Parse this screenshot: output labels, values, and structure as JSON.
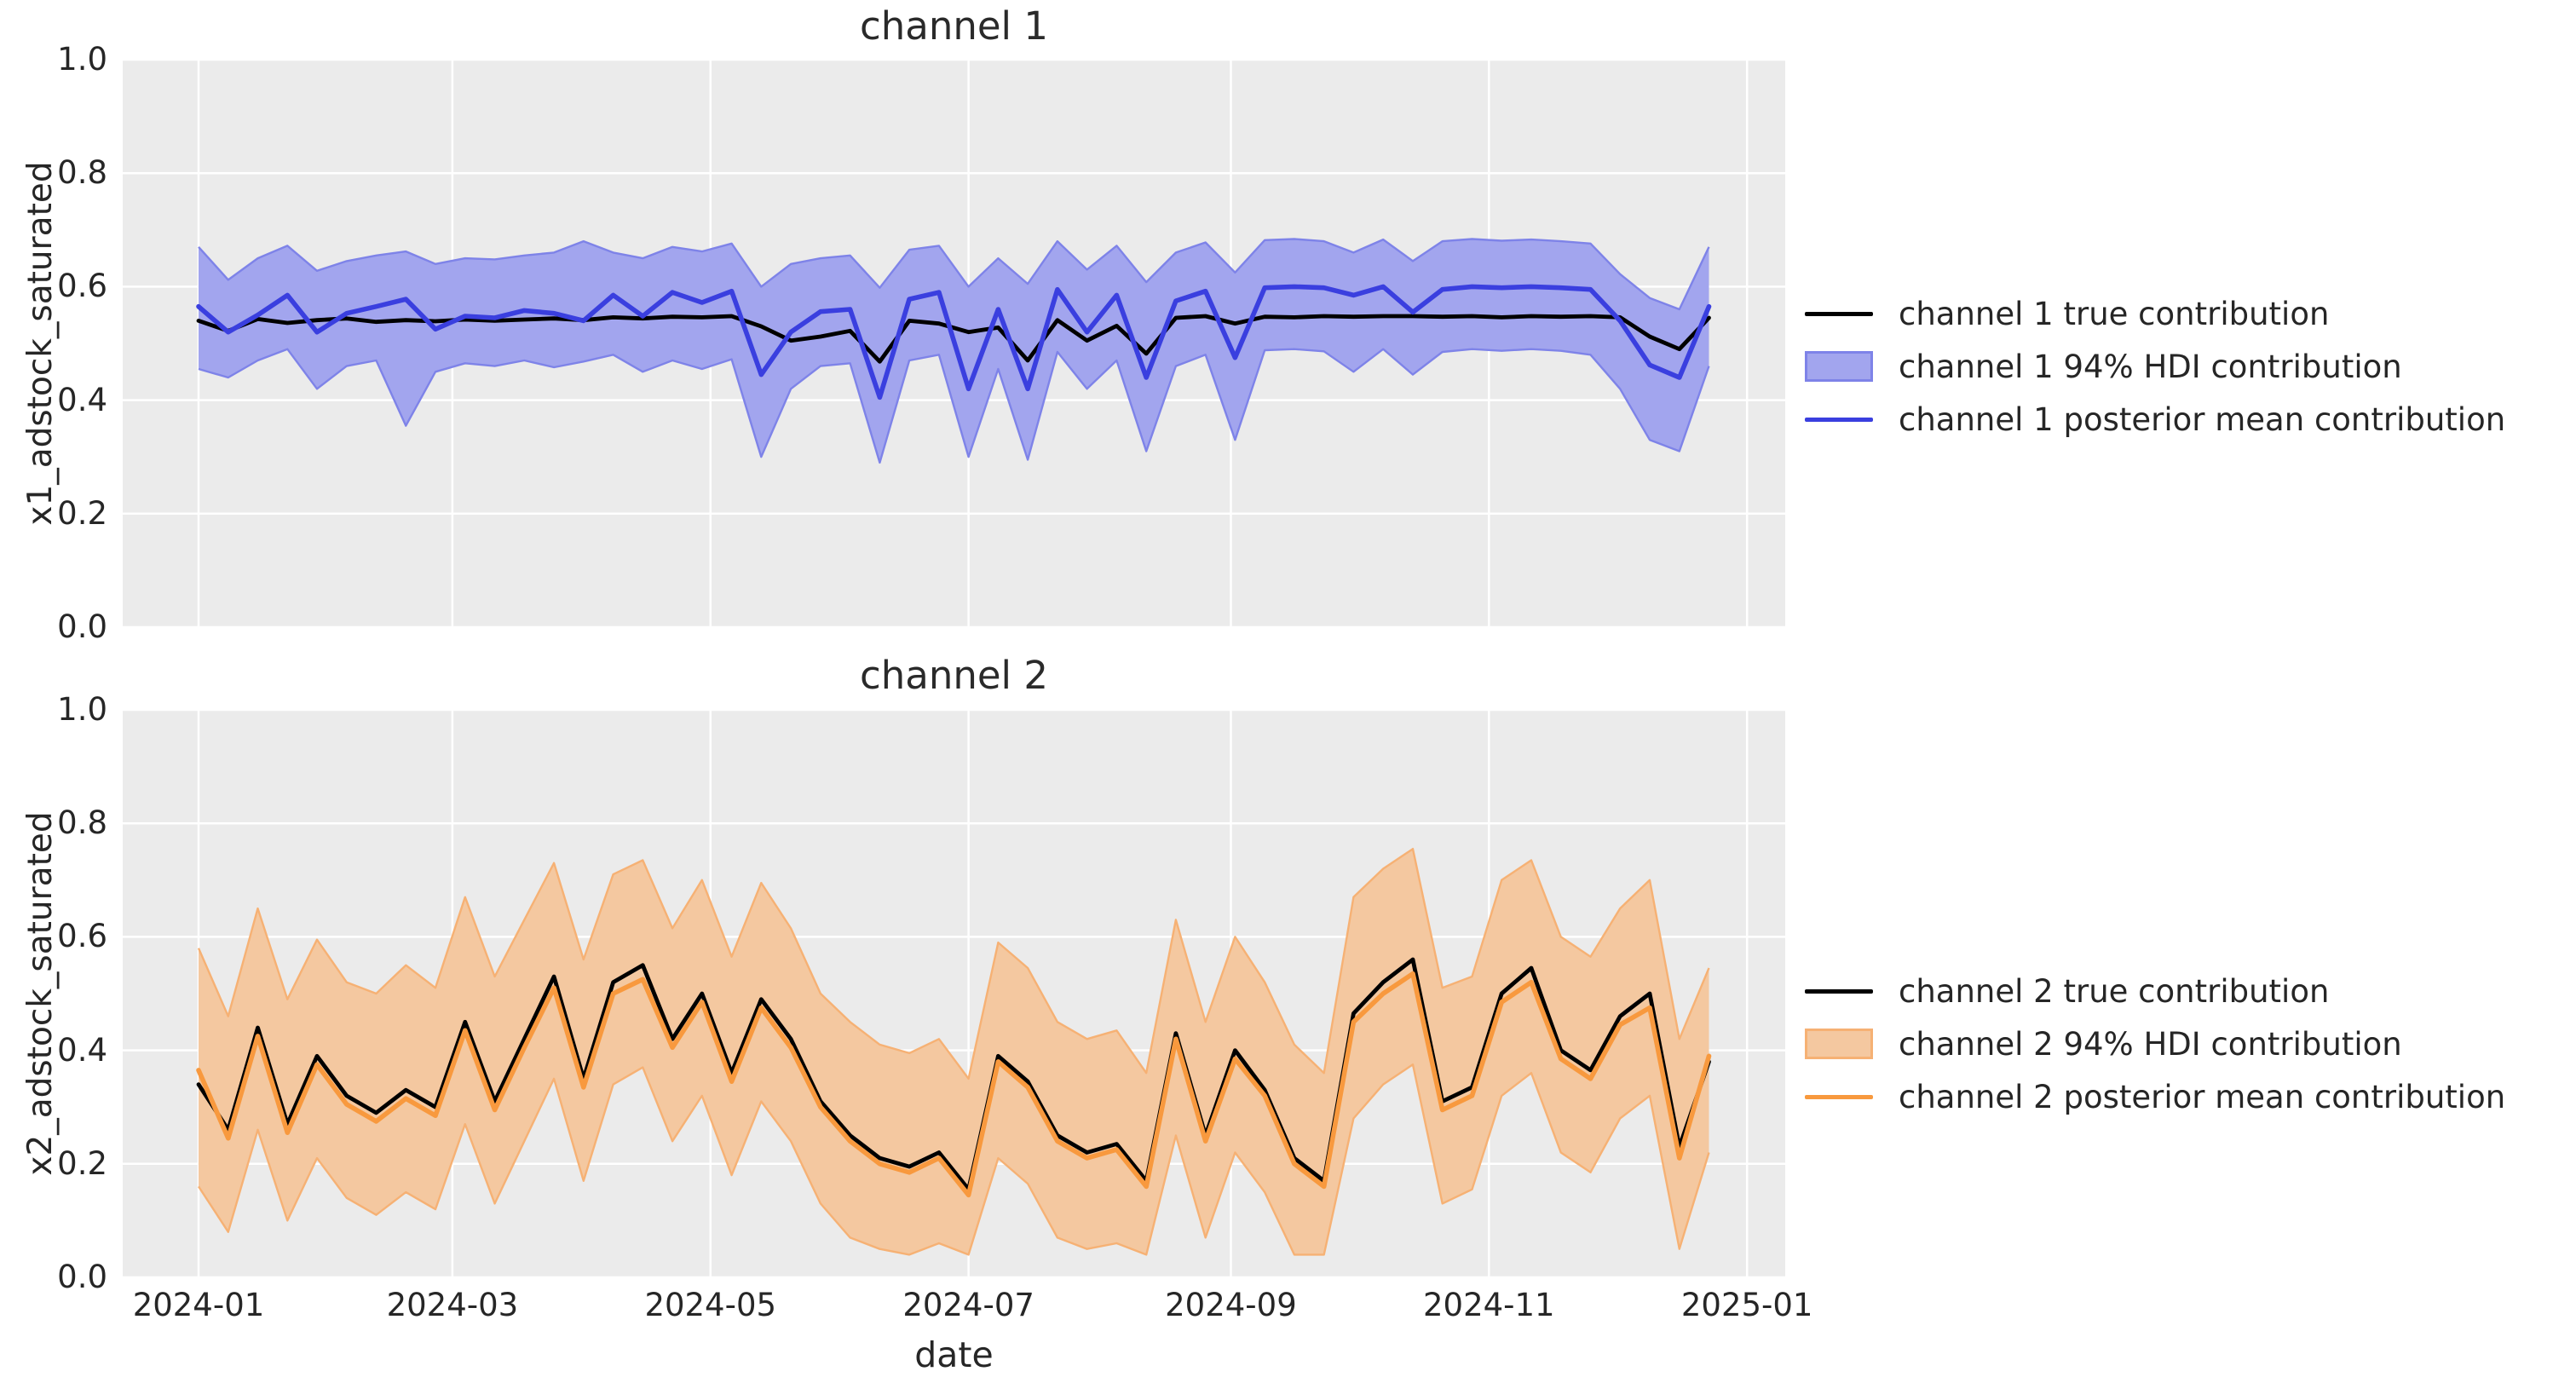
{
  "figure": {
    "background": "#ffffff",
    "panel_bg": "#ebebeb",
    "grid_color": "#ffffff",
    "text_color": "#262626",
    "xlabel": "date",
    "x_tick_labels": [
      "2024-01",
      "2024-03",
      "2024-05",
      "2024-07",
      "2024-09",
      "2024-11",
      "2025-01"
    ],
    "y_tick_labels": [
      "0.0",
      "0.2",
      "0.4",
      "0.6",
      "0.8",
      "1.0"
    ]
  },
  "charts": [
    {
      "title": "channel 1",
      "ylabel": "x1_adstock_saturated",
      "legend": [
        "channel 1 true contribution",
        "channel 1 94% HDI contribution",
        "channel 1 posterior mean contribution"
      ],
      "colors": {
        "true_line": "#000000",
        "hdi_fill": "#a2a5ee",
        "hdi_edge": "#7e83e8",
        "mean_line": "#3a3fdf"
      }
    },
    {
      "title": "channel 2",
      "ylabel": "x2_adstock_saturated",
      "legend": [
        "channel 2 true contribution",
        "channel 2 94% HDI contribution",
        "channel 2 posterior mean contribution"
      ],
      "colors": {
        "true_line": "#000000",
        "hdi_fill": "#f4c8a0",
        "hdi_edge": "#f6b174",
        "mean_line": "#f8993e"
      }
    }
  ],
  "chart_data": [
    {
      "type": "line",
      "title": "channel 1",
      "xlabel": "date",
      "ylabel": "x1_adstock_saturated",
      "ylim": [
        0.0,
        1.0
      ],
      "grid": true,
      "legend_position": "right",
      "x_ticks": [
        "2024-01",
        "2024-03",
        "2024-05",
        "2024-07",
        "2024-09",
        "2024-11",
        "2025-01"
      ],
      "dates": [
        "2024-01-01",
        "2024-01-08",
        "2024-01-15",
        "2024-01-22",
        "2024-01-29",
        "2024-02-05",
        "2024-02-12",
        "2024-02-19",
        "2024-02-26",
        "2024-03-04",
        "2024-03-11",
        "2024-03-18",
        "2024-03-25",
        "2024-04-01",
        "2024-04-08",
        "2024-04-15",
        "2024-04-22",
        "2024-04-29",
        "2024-05-06",
        "2024-05-13",
        "2024-05-20",
        "2024-05-27",
        "2024-06-03",
        "2024-06-10",
        "2024-06-17",
        "2024-06-24",
        "2024-07-01",
        "2024-07-08",
        "2024-07-15",
        "2024-07-22",
        "2024-07-29",
        "2024-08-05",
        "2024-08-12",
        "2024-08-19",
        "2024-08-26",
        "2024-09-02",
        "2024-09-09",
        "2024-09-16",
        "2024-09-23",
        "2024-09-30",
        "2024-10-07",
        "2024-10-14",
        "2024-10-21",
        "2024-10-28",
        "2024-11-04",
        "2024-11-11",
        "2024-11-18",
        "2024-11-25",
        "2024-12-02",
        "2024-12-09",
        "2024-12-16",
        "2024-12-23"
      ],
      "series": [
        {
          "name": "channel 1 true contribution",
          "values": [
            0.54,
            0.522,
            0.543,
            0.536,
            0.541,
            0.544,
            0.538,
            0.541,
            0.539,
            0.542,
            0.54,
            0.542,
            0.544,
            0.541,
            0.546,
            0.544,
            0.547,
            0.546,
            0.548,
            0.53,
            0.505,
            0.512,
            0.522,
            0.468,
            0.54,
            0.535,
            0.52,
            0.528,
            0.47,
            0.541,
            0.505,
            0.531,
            0.482,
            0.545,
            0.548,
            0.535,
            0.547,
            0.546,
            0.548,
            0.547,
            0.548,
            0.548,
            0.547,
            0.548,
            0.546,
            0.548,
            0.547,
            0.548,
            0.546,
            0.512,
            0.49,
            0.545
          ]
        },
        {
          "name": "channel 1 posterior mean contribution",
          "values": [
            0.565,
            0.52,
            0.55,
            0.585,
            0.52,
            0.553,
            0.565,
            0.578,
            0.525,
            0.548,
            0.545,
            0.558,
            0.553,
            0.54,
            0.585,
            0.548,
            0.59,
            0.572,
            0.592,
            0.445,
            0.52,
            0.556,
            0.56,
            0.405,
            0.578,
            0.59,
            0.42,
            0.56,
            0.42,
            0.595,
            0.52,
            0.585,
            0.44,
            0.575,
            0.592,
            0.475,
            0.598,
            0.6,
            0.598,
            0.585,
            0.6,
            0.555,
            0.595,
            0.6,
            0.598,
            0.6,
            0.598,
            0.595,
            0.54,
            0.462,
            0.44,
            0.565
          ]
        },
        {
          "name": "channel 1 94% HDI lower",
          "values": [
            0.455,
            0.44,
            0.47,
            0.49,
            0.42,
            0.46,
            0.47,
            0.355,
            0.45,
            0.465,
            0.46,
            0.47,
            0.458,
            0.468,
            0.48,
            0.45,
            0.47,
            0.455,
            0.472,
            0.3,
            0.42,
            0.46,
            0.465,
            0.29,
            0.47,
            0.48,
            0.3,
            0.455,
            0.295,
            0.485,
            0.42,
            0.47,
            0.31,
            0.46,
            0.48,
            0.33,
            0.488,
            0.49,
            0.486,
            0.45,
            0.49,
            0.445,
            0.485,
            0.49,
            0.487,
            0.49,
            0.487,
            0.48,
            0.42,
            0.33,
            0.31,
            0.46
          ]
        },
        {
          "name": "channel 1 94% HDI upper",
          "values": [
            0.67,
            0.612,
            0.65,
            0.672,
            0.628,
            0.645,
            0.655,
            0.662,
            0.64,
            0.65,
            0.648,
            0.655,
            0.66,
            0.68,
            0.66,
            0.65,
            0.67,
            0.662,
            0.676,
            0.6,
            0.64,
            0.65,
            0.655,
            0.598,
            0.665,
            0.672,
            0.6,
            0.65,
            0.605,
            0.68,
            0.63,
            0.672,
            0.608,
            0.66,
            0.678,
            0.625,
            0.682,
            0.684,
            0.68,
            0.66,
            0.683,
            0.645,
            0.68,
            0.684,
            0.681,
            0.683,
            0.68,
            0.676,
            0.622,
            0.58,
            0.56,
            0.67
          ]
        }
      ]
    },
    {
      "type": "line",
      "title": "channel 2",
      "xlabel": "date",
      "ylabel": "x2_adstock_saturated",
      "ylim": [
        0.0,
        1.0
      ],
      "grid": true,
      "legend_position": "right",
      "x_ticks": [
        "2024-01",
        "2024-03",
        "2024-05",
        "2024-07",
        "2024-09",
        "2024-11",
        "2025-01"
      ],
      "dates": [
        "2024-01-01",
        "2024-01-08",
        "2024-01-15",
        "2024-01-22",
        "2024-01-29",
        "2024-02-05",
        "2024-02-12",
        "2024-02-19",
        "2024-02-26",
        "2024-03-04",
        "2024-03-11",
        "2024-03-18",
        "2024-03-25",
        "2024-04-01",
        "2024-04-08",
        "2024-04-15",
        "2024-04-22",
        "2024-04-29",
        "2024-05-06",
        "2024-05-13",
        "2024-05-20",
        "2024-05-27",
        "2024-06-03",
        "2024-06-10",
        "2024-06-17",
        "2024-06-24",
        "2024-07-01",
        "2024-07-08",
        "2024-07-15",
        "2024-07-22",
        "2024-07-29",
        "2024-08-05",
        "2024-08-12",
        "2024-08-19",
        "2024-08-26",
        "2024-09-02",
        "2024-09-09",
        "2024-09-16",
        "2024-09-23",
        "2024-09-30",
        "2024-10-07",
        "2024-10-14",
        "2024-10-21",
        "2024-10-28",
        "2024-11-04",
        "2024-11-11",
        "2024-11-18",
        "2024-11-25",
        "2024-12-02",
        "2024-12-09",
        "2024-12-16",
        "2024-12-23"
      ],
      "series": [
        {
          "name": "channel 2 true contribution",
          "values": [
            0.34,
            0.26,
            0.44,
            0.27,
            0.39,
            0.32,
            0.29,
            0.33,
            0.3,
            0.45,
            0.31,
            0.42,
            0.53,
            0.35,
            0.52,
            0.55,
            0.42,
            0.5,
            0.36,
            0.49,
            0.42,
            0.31,
            0.25,
            0.21,
            0.195,
            0.22,
            0.155,
            0.39,
            0.345,
            0.25,
            0.22,
            0.235,
            0.17,
            0.43,
            0.25,
            0.4,
            0.33,
            0.21,
            0.17,
            0.465,
            0.52,
            0.56,
            0.31,
            0.335,
            0.5,
            0.545,
            0.4,
            0.365,
            0.46,
            0.5,
            0.23,
            0.38
          ]
        },
        {
          "name": "channel 2 posterior mean contribution",
          "values": [
            0.365,
            0.245,
            0.425,
            0.255,
            0.375,
            0.305,
            0.275,
            0.315,
            0.285,
            0.435,
            0.295,
            0.405,
            0.51,
            0.335,
            0.5,
            0.525,
            0.405,
            0.485,
            0.345,
            0.475,
            0.405,
            0.3,
            0.24,
            0.2,
            0.185,
            0.21,
            0.145,
            0.38,
            0.335,
            0.24,
            0.21,
            0.225,
            0.16,
            0.42,
            0.24,
            0.385,
            0.32,
            0.2,
            0.16,
            0.45,
            0.5,
            0.535,
            0.295,
            0.32,
            0.485,
            0.52,
            0.385,
            0.35,
            0.445,
            0.475,
            0.21,
            0.39
          ]
        },
        {
          "name": "channel 2 94% HDI lower",
          "values": [
            0.16,
            0.08,
            0.26,
            0.1,
            0.21,
            0.14,
            0.11,
            0.15,
            0.12,
            0.27,
            0.13,
            0.24,
            0.35,
            0.17,
            0.34,
            0.37,
            0.24,
            0.32,
            0.18,
            0.31,
            0.24,
            0.13,
            0.07,
            0.05,
            0.04,
            0.06,
            0.04,
            0.21,
            0.165,
            0.07,
            0.05,
            0.06,
            0.04,
            0.25,
            0.07,
            0.22,
            0.15,
            0.04,
            0.04,
            0.28,
            0.34,
            0.375,
            0.13,
            0.155,
            0.32,
            0.36,
            0.22,
            0.185,
            0.28,
            0.32,
            0.05,
            0.22
          ]
        },
        {
          "name": "channel 2 94% HDI upper",
          "values": [
            0.58,
            0.46,
            0.65,
            0.49,
            0.595,
            0.52,
            0.5,
            0.55,
            0.51,
            0.67,
            0.53,
            0.63,
            0.73,
            0.56,
            0.71,
            0.735,
            0.615,
            0.7,
            0.565,
            0.695,
            0.615,
            0.5,
            0.45,
            0.41,
            0.395,
            0.42,
            0.35,
            0.59,
            0.545,
            0.45,
            0.42,
            0.435,
            0.36,
            0.63,
            0.45,
            0.6,
            0.52,
            0.41,
            0.36,
            0.67,
            0.72,
            0.755,
            0.51,
            0.53,
            0.7,
            0.735,
            0.6,
            0.565,
            0.65,
            0.7,
            0.42,
            0.545
          ]
        }
      ]
    }
  ]
}
